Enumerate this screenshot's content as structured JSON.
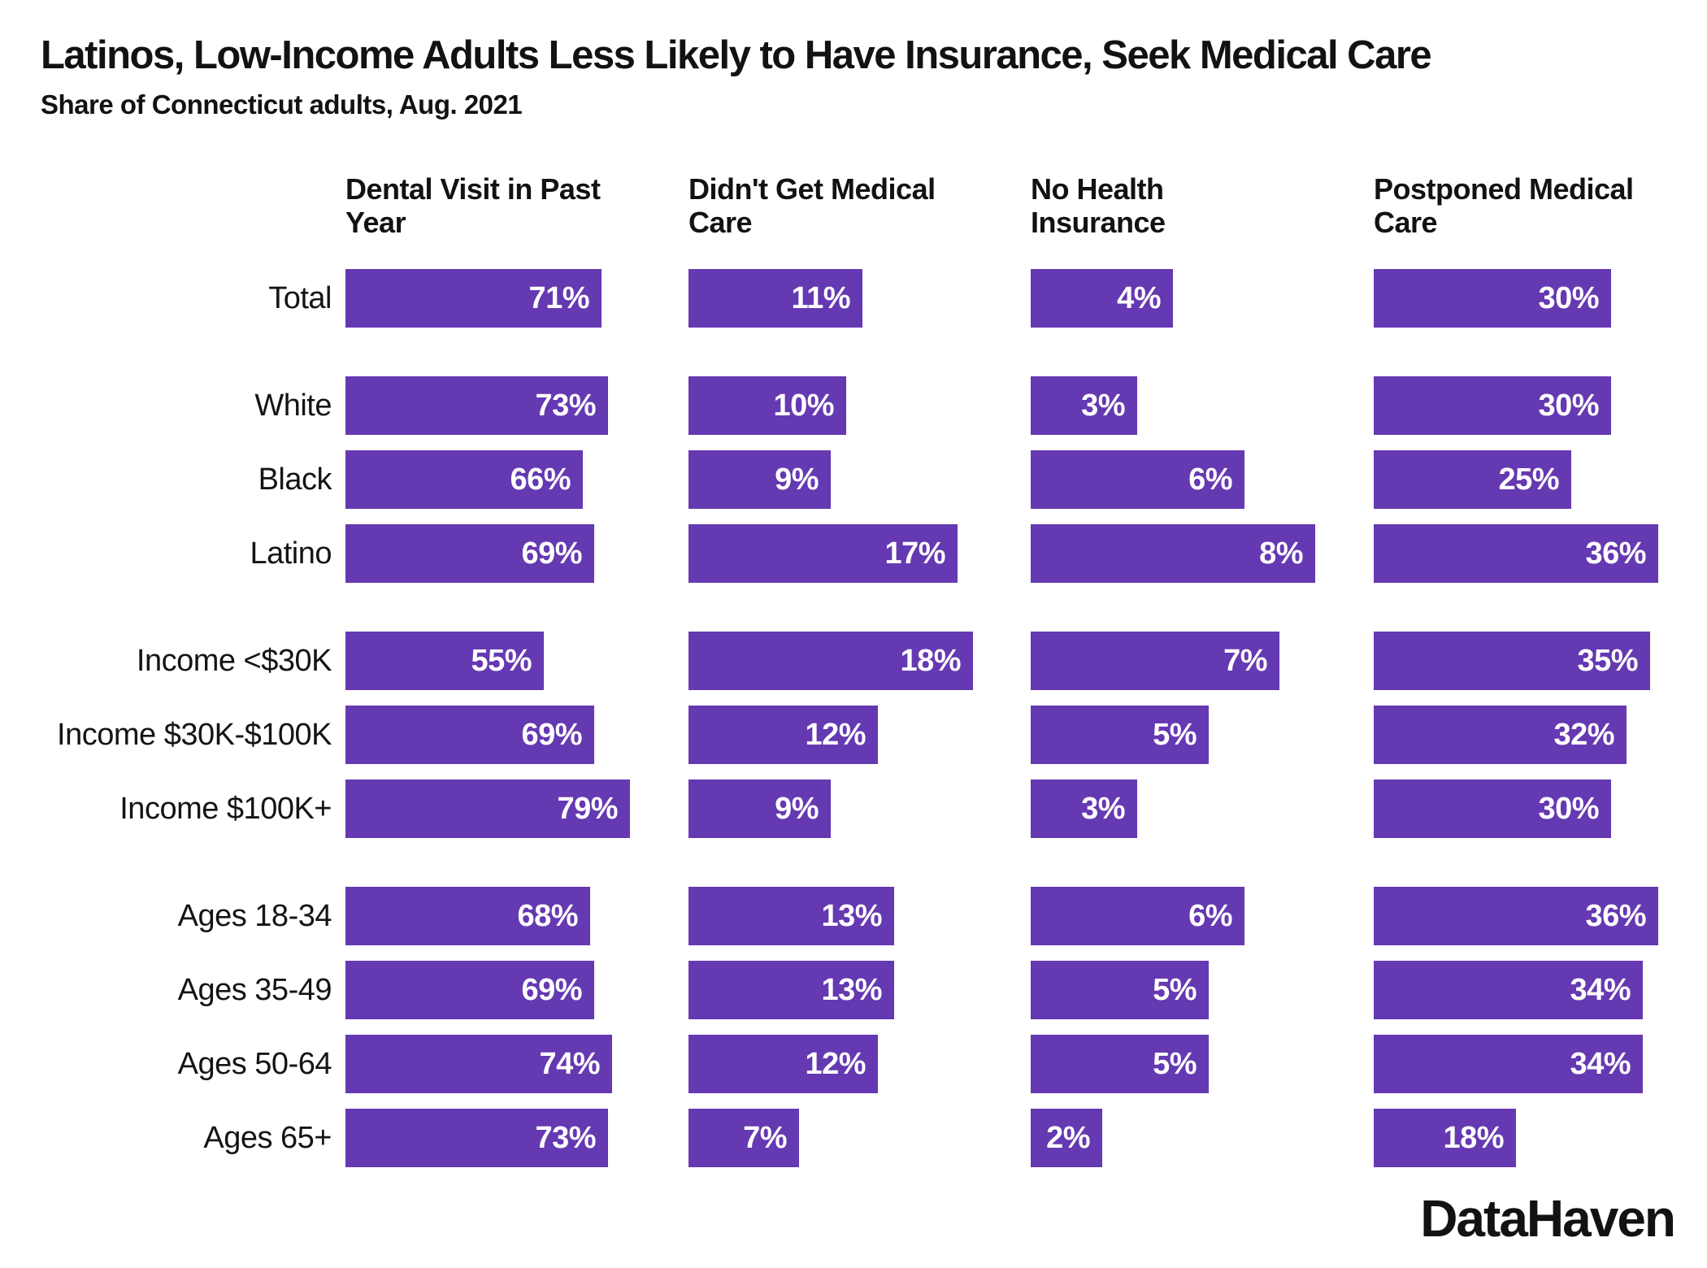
{
  "header": {
    "title": "Latinos, Low-Income Adults Less Likely to Have Insurance, Seek Medical Care",
    "subtitle": "Share of Connecticut adults, Aug. 2021"
  },
  "footer": {
    "brand": "DataHaven"
  },
  "chart_data": {
    "type": "bar",
    "orientation": "horizontal",
    "value_suffix": "%",
    "bar_color": "#6539B2",
    "categories": [
      "Total",
      "White",
      "Black",
      "Latino",
      "Income <$30K",
      "Income $30K-$100K",
      "Income $100K+",
      "Ages 18-34",
      "Ages 35-49",
      "Ages 50-64",
      "Ages 65+"
    ],
    "category_groups": [
      [
        "Total"
      ],
      [
        "White",
        "Black",
        "Latino"
      ],
      [
        "Income <$30K",
        "Income $30K-$100K",
        "Income $100K+"
      ],
      [
        "Ages 18-34",
        "Ages 35-49",
        "Ages 50-64",
        "Ages 65+"
      ]
    ],
    "facets": [
      {
        "label": "Dental Visit in Past\nYear",
        "axis_max": 79,
        "values": [
          71,
          73,
          66,
          69,
          55,
          69,
          79,
          68,
          69,
          74,
          73
        ]
      },
      {
        "label": "Didn't Get Medical\nCare",
        "axis_max": 18,
        "values": [
          11,
          10,
          9,
          17,
          18,
          12,
          9,
          13,
          13,
          12,
          7
        ]
      },
      {
        "label": "No Health\nInsurance",
        "axis_max": 8,
        "values": [
          4,
          3,
          6,
          8,
          7,
          5,
          3,
          6,
          5,
          5,
          2
        ]
      },
      {
        "label": "Postponed Medical\nCare",
        "axis_max": 36,
        "values": [
          30,
          30,
          25,
          36,
          35,
          32,
          30,
          36,
          34,
          34,
          18
        ]
      }
    ],
    "legend": "none",
    "grid": "off",
    "value_labels": "inside-right, white"
  }
}
